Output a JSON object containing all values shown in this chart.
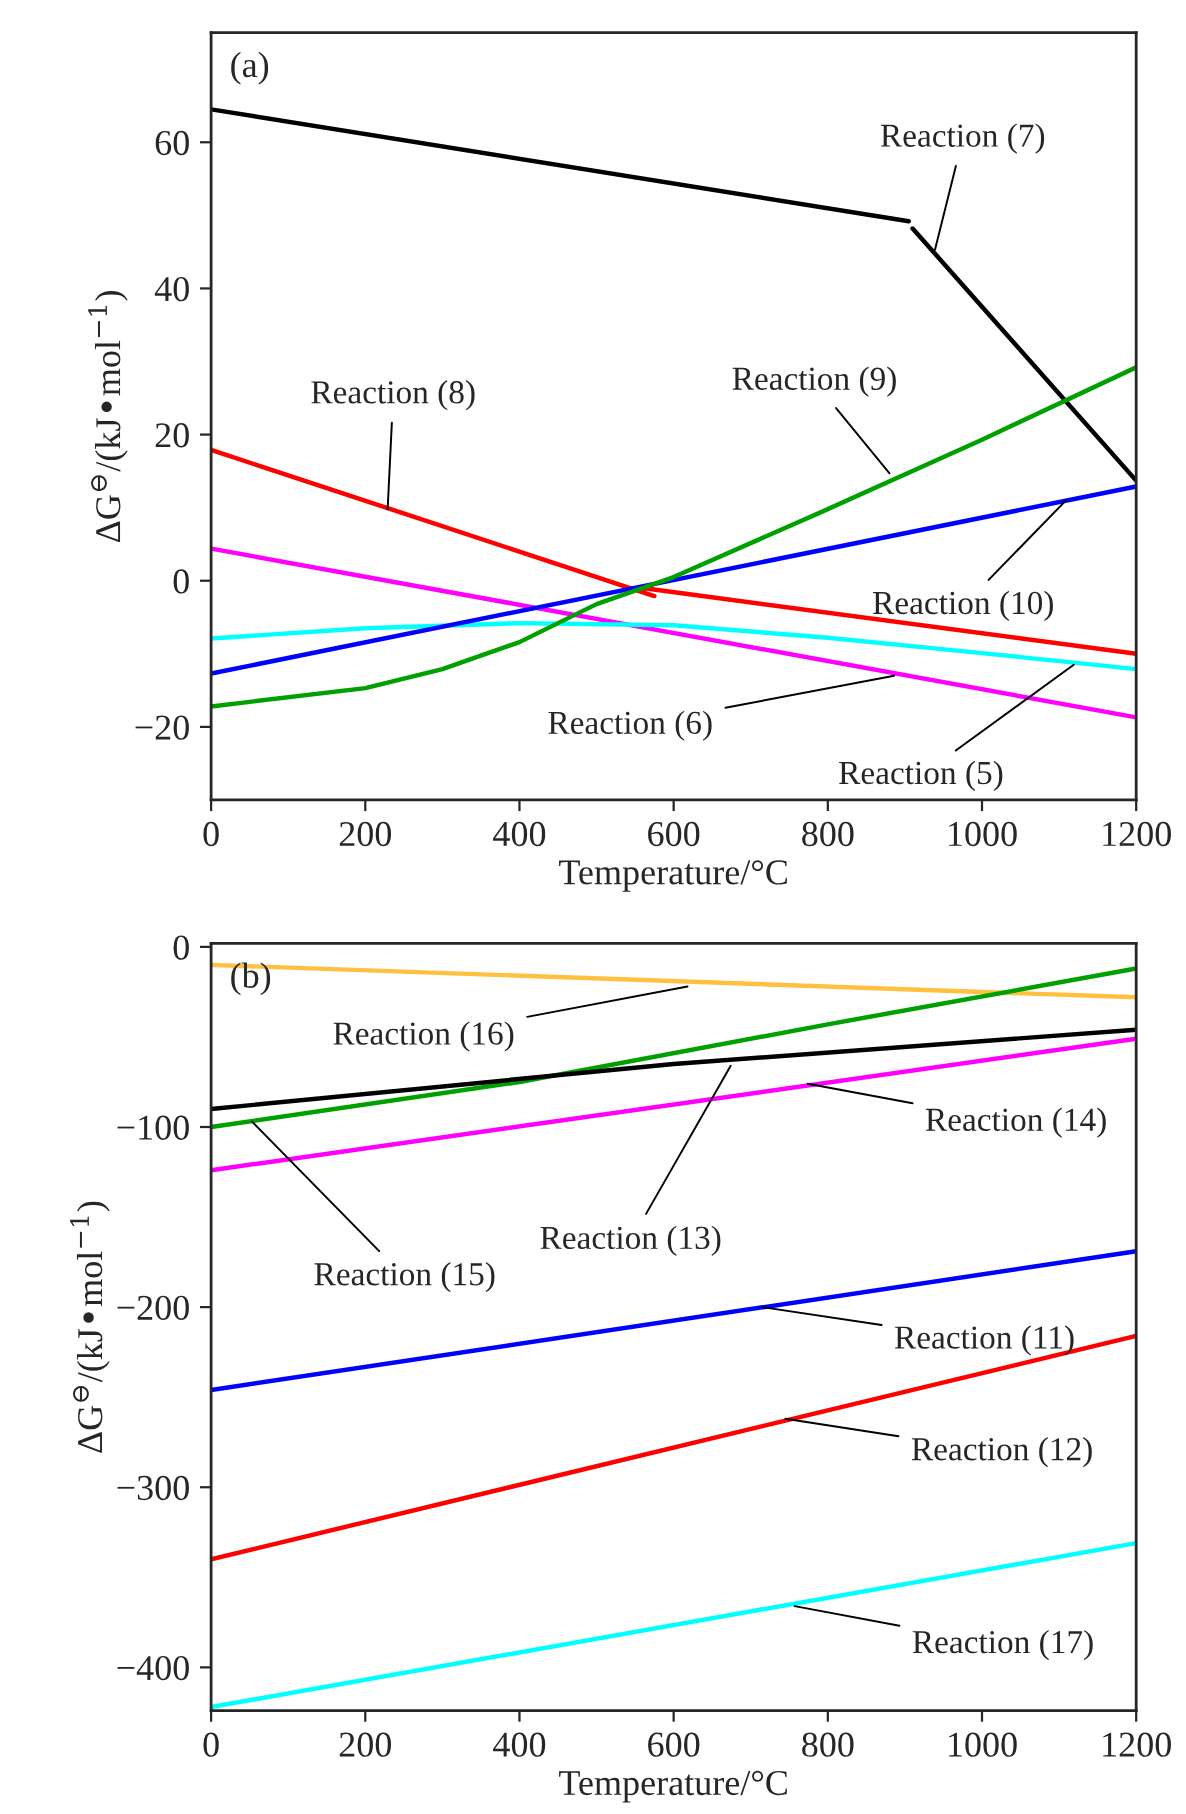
{
  "chart_data": [
    {
      "type": "line",
      "xlabel": "Temperature/°C",
      "ylabel": "ΔG$^{⊖}$/(kJ•mol$^{−1}$)",
      "xlim": [
        0,
        1200
      ],
      "ylim": [
        -30,
        75
      ],
      "xticks": [
        0,
        200,
        400,
        600,
        800,
        1000,
        1200
      ],
      "yticks": [
        -20,
        0,
        20,
        40,
        60
      ],
      "series": [
        {
          "color": "#000000",
          "x": [
            0,
            905,
            907,
            910,
            1200
          ],
          "values": [
            64.5,
            49.2,
            null,
            48.2,
            13.7
          ]
        },
        {
          "color": "#ff0000",
          "x": [
            0,
            575,
            568,
            560,
            1200
          ],
          "values": [
            17.9,
            -2.1,
            null,
            -1.0,
            -10
          ]
        },
        {
          "color": "#ff00ff",
          "x": [
            0,
            1200
          ],
          "values": [
            4.4,
            -18.7
          ]
        },
        {
          "color": "#00ffff",
          "x": [
            0,
            200,
            400,
            600,
            800,
            1000,
            1200
          ],
          "values": [
            -7.9,
            -6.5,
            -5.8,
            -6.1,
            -7.8,
            -9.9,
            -12.1
          ]
        },
        {
          "color": "#0000ff",
          "x": [
            0,
            1200
          ],
          "values": [
            -12.7,
            12.9
          ]
        },
        {
          "color": "#00a000",
          "x": [
            0,
            200,
            300,
            400,
            500,
            600,
            800,
            1000,
            1200
          ],
          "values": [
            -17.2,
            -14.7,
            -12.1,
            -8.4,
            -3.2,
            0.5,
            9.8,
            19.3,
            29.2
          ]
        }
      ],
      "annotations": [
        "(a)",
        {
          "text": "Reaction (7)",
          "x": 939,
          "y": 45.3
        },
        {
          "text": "Reaction (8)",
          "x": 229,
          "y": 9.8
        },
        {
          "text": "Reaction (9)",
          "x": 880,
          "y": 14.7
        },
        {
          "text": "Reaction (10)",
          "x": 1109,
          "y": 11
        },
        {
          "text": "Reaction (6)",
          "x": 886,
          "y": -13
        },
        {
          "text": "Reaction (5)",
          "x": 1119,
          "y": -11.5
        }
      ]
    },
    {
      "type": "line",
      "xlabel": "Temperature/°C",
      "ylabel": "ΔG$^{⊖}$/(kJ•mol$^{−1}$)",
      "xlim": [
        0,
        1200
      ],
      "ylim": [
        -424,
        2
      ],
      "xticks": [
        0,
        200,
        400,
        600,
        800,
        1000,
        1200
      ],
      "yticks": [
        -400,
        -300,
        -200,
        -100,
        0
      ],
      "series": [
        {
          "color": "#ffc040",
          "x": [
            0,
            1200
          ],
          "values": [
            -10,
            -28
          ]
        },
        {
          "color": "#00a000",
          "x": [
            0,
            400,
            800,
            1200
          ],
          "values": [
            -100,
            -75,
            -43,
            -12
          ]
        },
        {
          "color": "#000000",
          "x": [
            0,
            600,
            1200
          ],
          "values": [
            -90,
            -65,
            -46
          ]
        },
        {
          "color": "#ff00ff",
          "x": [
            0,
            1200
          ],
          "values": [
            -124,
            -51
          ]
        },
        {
          "color": "#0000ff",
          "x": [
            0,
            1200
          ],
          "values": [
            -246,
            -169
          ]
        },
        {
          "color": "#ff0000",
          "x": [
            0,
            1200
          ],
          "values": [
            -340,
            -216
          ]
        },
        {
          "color": "#00ffff",
          "x": [
            0,
            1200
          ],
          "values": [
            -422,
            -331
          ]
        }
      ],
      "annotations": [
        "(b)",
        {
          "text": "Reaction (16)",
          "x": 618,
          "y": -22
        },
        {
          "text": "Reaction (15)",
          "x": 53,
          "y": -97
        },
        {
          "text": "Reaction (13)",
          "x": 674,
          "y": -66
        },
        {
          "text": "Reaction (14)",
          "x": 774,
          "y": -76
        },
        {
          "text": "Reaction (11)",
          "x": 715,
          "y": -200
        },
        {
          "text": "Reaction (12)",
          "x": 745,
          "y": -262
        },
        {
          "text": "Reaction (17)",
          "x": 757,
          "y": -366
        }
      ]
    }
  ]
}
